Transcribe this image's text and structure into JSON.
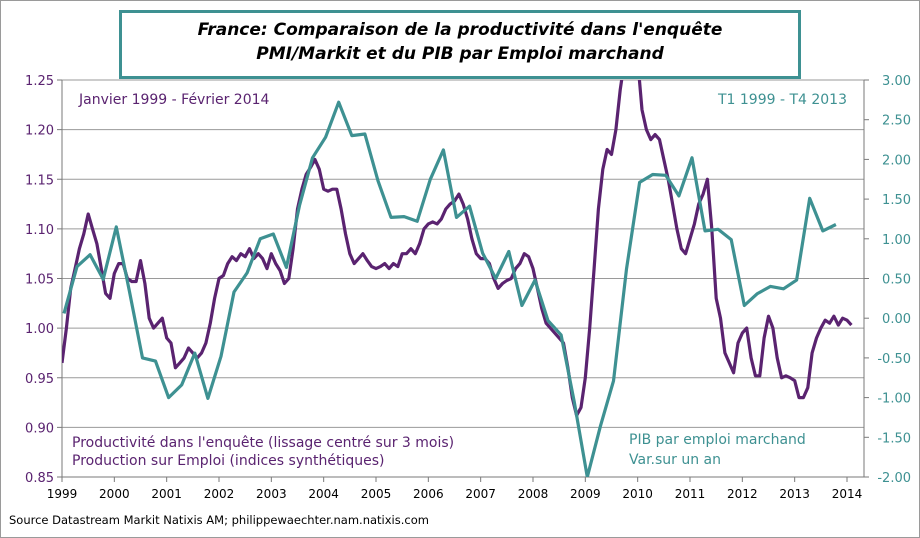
{
  "chart_data": {
    "type": "line",
    "title": "France: Comparaison de la productivité dans l'enquête PMI/Markit et du PIB par Emploi marchand",
    "title_lines": [
      "France: Comparaison de la productivité dans l'enquête",
      "PMI/Markit et du PIB par Emploi marchand"
    ],
    "left_axis": {
      "ylim": [
        0.85,
        1.25
      ],
      "ticks": [
        "0.85",
        "0.90",
        "0.95",
        "1.00",
        "1.05",
        "1.10",
        "1.15",
        "1.20",
        "1.25"
      ],
      "color": "#5a2370"
    },
    "right_axis": {
      "ylim": [
        -2.0,
        3.0
      ],
      "ticks": [
        "-2.00",
        "-1.50",
        "-1.00",
        "-0.50",
        "0.00",
        "0.50",
        "1.00",
        "1.50",
        "2.00",
        "2.50",
        "3.00"
      ],
      "color": "#3e9192"
    },
    "x_ticks": [
      "1999",
      "2000",
      "2001",
      "2002",
      "2003",
      "2004",
      "2005",
      "2006",
      "2007",
      "2008",
      "2009",
      "2010",
      "2011",
      "2012",
      "2013",
      "2014"
    ],
    "grid": true,
    "annotations": {
      "left_period": "Janvier 1999 - Février 2014",
      "right_period": "T1 1999 - T4 2013",
      "left_series_label_1": "Productivité dans l'enquête (lissage centré sur 3 mois)",
      "left_series_label_2": "Production sur Emploi (indices synthétiques)",
      "right_series_label_1": "PIB par emploi marchand",
      "right_series_label_2": "Var.sur un an"
    },
    "series": [
      {
        "axis": "left",
        "frequency": "monthly",
        "start": "1999-01",
        "end": "2014-02",
        "color": "#5a2370",
        "values": [
          0.965,
          1.0,
          1.04,
          1.06,
          1.08,
          1.095,
          1.115,
          1.1,
          1.085,
          1.06,
          1.035,
          1.03,
          1.055,
          1.065,
          1.065,
          1.05,
          1.047,
          1.047,
          1.068,
          1.045,
          1.01,
          1.0,
          1.005,
          1.01,
          0.99,
          0.985,
          0.96,
          0.965,
          0.97,
          0.98,
          0.975,
          0.97,
          0.975,
          0.985,
          1.005,
          1.03,
          1.05,
          1.053,
          1.065,
          1.072,
          1.068,
          1.075,
          1.072,
          1.08,
          1.07,
          1.075,
          1.07,
          1.06,
          1.075,
          1.065,
          1.058,
          1.045,
          1.05,
          1.08,
          1.12,
          1.14,
          1.155,
          1.162,
          1.17,
          1.16,
          1.14,
          1.138,
          1.14,
          1.14,
          1.12,
          1.095,
          1.075,
          1.065,
          1.07,
          1.075,
          1.068,
          1.062,
          1.06,
          1.062,
          1.065,
          1.06,
          1.065,
          1.062,
          1.075,
          1.075,
          1.08,
          1.075,
          1.085,
          1.1,
          1.105,
          1.107,
          1.105,
          1.11,
          1.12,
          1.125,
          1.128,
          1.135,
          1.125,
          1.11,
          1.09,
          1.075,
          1.07,
          1.07,
          1.065,
          1.05,
          1.04,
          1.045,
          1.048,
          1.05,
          1.06,
          1.065,
          1.075,
          1.072,
          1.06,
          1.04,
          1.02,
          1.005,
          1.0,
          0.995,
          0.99,
          0.985,
          0.96,
          0.93,
          0.912,
          0.92,
          0.95,
          1.0,
          1.06,
          1.12,
          1.16,
          1.18,
          1.175,
          1.2,
          1.24,
          1.27,
          1.3,
          1.3,
          1.27,
          1.22,
          1.2,
          1.19,
          1.195,
          1.19,
          1.17,
          1.15,
          1.125,
          1.1,
          1.08,
          1.075,
          1.09,
          1.105,
          1.125,
          1.135,
          1.15,
          1.1,
          1.03,
          1.01,
          0.975,
          0.965,
          0.955,
          0.985,
          0.995,
          1.0,
          0.97,
          0.952,
          0.952,
          0.99,
          1.012,
          1.0,
          0.97,
          0.95,
          0.952,
          0.95,
          0.947,
          0.93,
          0.93,
          0.94,
          0.975,
          0.99,
          1.0,
          1.008,
          1.005,
          1.012,
          1.003,
          1.01,
          1.008,
          1.003
        ]
      },
      {
        "axis": "right",
        "frequency": "quarterly",
        "start": "1999-Q1",
        "end": "2013-Q4",
        "color": "#3e9192",
        "values": [
          0.06,
          0.65,
          0.8,
          0.49,
          1.15,
          0.34,
          -0.5,
          -0.54,
          -1.0,
          -0.84,
          -0.44,
          -1.01,
          -0.48,
          0.33,
          0.57,
          1.0,
          1.06,
          0.64,
          1.42,
          2.02,
          2.28,
          2.72,
          2.3,
          2.32,
          1.73,
          1.27,
          1.28,
          1.22,
          1.75,
          2.12,
          1.27,
          1.41,
          0.82,
          0.5,
          0.84,
          0.16,
          0.48,
          -0.03,
          -0.21,
          -1.05,
          -2.0,
          -1.36,
          -0.79,
          0.62,
          1.71,
          1.81,
          1.8,
          1.54,
          2.02,
          1.1,
          1.12,
          0.99,
          0.16,
          0.31,
          0.4,
          0.37,
          0.48,
          1.51,
          1.1,
          1.18
        ]
      }
    ]
  },
  "source": "Source Datastream Markit Natixis AM; philippewaechter.nam.natixis.com"
}
